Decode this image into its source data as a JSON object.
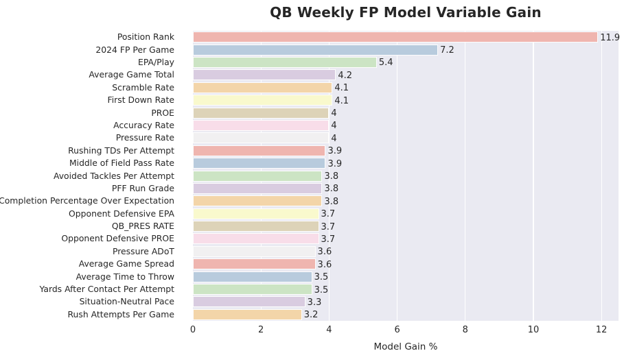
{
  "title": "QB Weekly FP Model Variable Gain",
  "chart_data": {
    "type": "bar",
    "orientation": "horizontal",
    "title": "QB Weekly FP Model Variable Gain",
    "xlabel": "Model Gain %",
    "ylabel": "",
    "xlim": [
      0,
      12.5
    ],
    "xticks": [
      0,
      2,
      4,
      6,
      8,
      10,
      12
    ],
    "grid": true,
    "legend": "none",
    "plot_bg_color": "#eaeaf2",
    "grid_color": "#ffffff",
    "text_color": "#262626",
    "palette_cycle": [
      "#efb5af",
      "#b8cbdd",
      "#cce4c4",
      "#d9cce0",
      "#f3d5a9",
      "#f9f9cd",
      "#ddd3b8",
      "#f8dde9",
      "#f1f0f1"
    ],
    "categories": [
      "Position Rank",
      "2024 FP Per Game",
      "EPA/Play",
      "Average Game Total",
      "Scramble Rate",
      "First Down Rate",
      "PROE",
      "Accuracy Rate",
      "Pressure Rate",
      "Rushing TDs Per Attempt",
      "Middle of Field Pass Rate",
      "Avoided Tackles Per Attempt",
      "PFF Run Grade",
      "Completion Percentage Over Expectation",
      "Opponent Defensive EPA",
      "QB_PRES RATE",
      "Opponent Defensive PROE",
      "Pressure ADoT",
      "Average Game Spread",
      "Average Time to Throw",
      "Yards After Contact Per Attempt",
      "Situation-Neutral Pace",
      "Rush Attempts Per Game"
    ],
    "values": [
      11.9,
      7.2,
      5.4,
      4.2,
      4.1,
      4.1,
      4,
      4,
      4,
      3.9,
      3.9,
      3.8,
      3.8,
      3.8,
      3.7,
      3.7,
      3.7,
      3.6,
      3.6,
      3.5,
      3.5,
      3.3,
      3.2
    ],
    "value_labels": [
      "11.9",
      "7.2",
      "5.4",
      "4.2",
      "4.1",
      "4.1",
      "4",
      "4",
      "4",
      "3.9",
      "3.9",
      "3.8",
      "3.8",
      "3.8",
      "3.7",
      "3.7",
      "3.7",
      "3.6",
      "3.6",
      "3.5",
      "3.5",
      "3.3",
      "3.2"
    ],
    "bar_colors": [
      "#efb5af",
      "#b8cbdd",
      "#cce4c4",
      "#d9cce0",
      "#f3d5a9",
      "#f9f9cd",
      "#ddd3b8",
      "#f8dde9",
      "#f1f0f1",
      "#efb5af",
      "#b8cbdd",
      "#cce4c4",
      "#d9cce0",
      "#f3d5a9",
      "#f9f9cd",
      "#ddd3b8",
      "#f8dde9",
      "#f1f0f1",
      "#efb5af",
      "#b8cbdd",
      "#cce4c4",
      "#d9cce0",
      "#f3d5a9"
    ]
  }
}
